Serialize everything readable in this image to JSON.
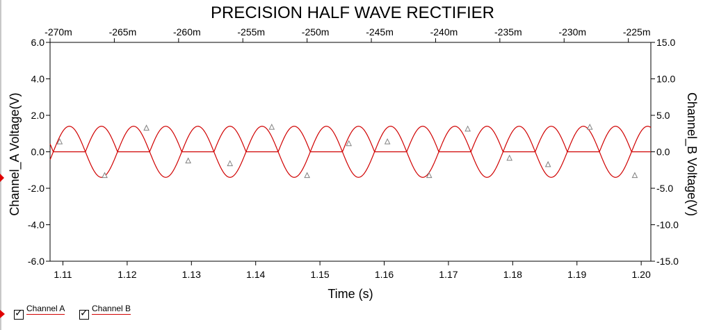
{
  "chart_data": {
    "type": "line",
    "title": "PRECISION HALF WAVE RECTIFIER",
    "xlabel": "Time (s)",
    "ylabel_left": "Channel_A Voltage(V)",
    "ylabel_right": "Channel_B Voltage(V)",
    "xlim": [
      1.108,
      1.2015
    ],
    "x_ticks": [
      "1.11",
      "1.12",
      "1.13",
      "1.14",
      "1.15",
      "1.16",
      "1.17",
      "1.18",
      "1.19",
      "1.20"
    ],
    "x_tick_values": [
      1.11,
      1.12,
      1.13,
      1.14,
      1.15,
      1.16,
      1.17,
      1.18,
      1.19,
      1.2
    ],
    "x2_ticks": [
      "-270m",
      "-265m",
      "-260m",
      "-255m",
      "-250m",
      "-245m",
      "-240m",
      "-235m",
      "-230m",
      "-225m"
    ],
    "x2_tick_values": [
      1.108,
      1.118,
      1.128,
      1.138,
      1.148,
      1.158,
      1.168,
      1.178,
      1.188,
      1.198
    ],
    "ylim_left": [
      -6.0,
      6.0
    ],
    "y_ticks_left": [
      "6.0",
      "4.0",
      "2.0",
      "0.0",
      "-2.0",
      "-4.0",
      "-6.0"
    ],
    "y_tick_values_left": [
      6.0,
      4.0,
      2.0,
      0.0,
      -2.0,
      -4.0,
      -6.0
    ],
    "ylim_right": [
      -15.0,
      15.0
    ],
    "y_ticks_right": [
      "15.0",
      "10.0",
      "5.0",
      "0.0",
      "-5.0",
      "-10.0",
      "-15.0"
    ],
    "y_tick_values_right": [
      15.0,
      10.0,
      5.0,
      0.0,
      -5.0,
      -10.0,
      -15.0
    ],
    "grid": false,
    "series": [
      {
        "name": "Channel A",
        "color": "#d00000",
        "description_values": {
          "waveform": "sine",
          "amplitude": 1.4,
          "period": 0.01,
          "zero_crossing_rising": 1.1085
        }
      },
      {
        "name": "Channel B",
        "color": "#d00000",
        "description_values": {
          "waveform": "half-wave rectified inverted sine",
          "peak": 1.4,
          "period": 0.01,
          "zero_crossing_rising": 1.1085
        }
      }
    ],
    "markers": [
      {
        "x": 1.1095,
        "y": 0.55
      },
      {
        "x": 1.1165,
        "y": -1.3
      },
      {
        "x": 1.123,
        "y": 1.3
      },
      {
        "x": 1.1295,
        "y": -0.5
      },
      {
        "x": 1.136,
        "y": -0.65
      },
      {
        "x": 1.1425,
        "y": 1.35
      },
      {
        "x": 1.148,
        "y": -1.3
      },
      {
        "x": 1.1545,
        "y": 0.45
      },
      {
        "x": 1.1605,
        "y": 0.55
      },
      {
        "x": 1.167,
        "y": -1.3
      },
      {
        "x": 1.173,
        "y": 1.25
      },
      {
        "x": 1.1795,
        "y": -0.35
      },
      {
        "x": 1.1855,
        "y": -0.7
      },
      {
        "x": 1.192,
        "y": 1.35
      },
      {
        "x": 1.199,
        "y": -1.3
      }
    ]
  },
  "legend": {
    "items": [
      {
        "label": "Channel A",
        "checked": true
      },
      {
        "label": "Channel B",
        "checked": true
      }
    ]
  },
  "colors": {
    "trace": "#d00000",
    "marker": "#808080"
  }
}
